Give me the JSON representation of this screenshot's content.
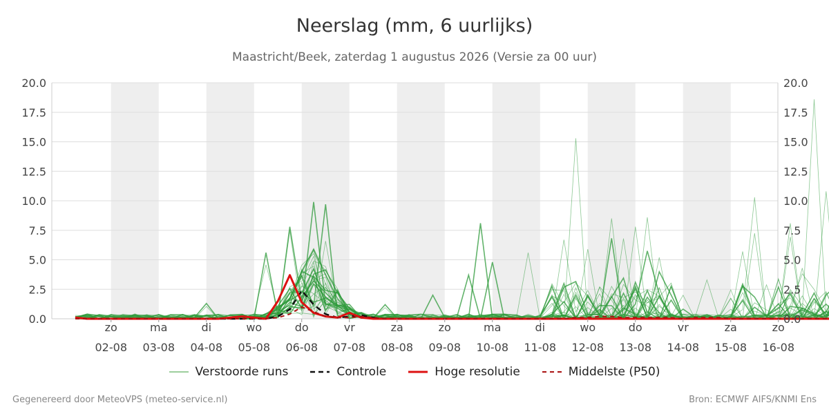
{
  "chart_data": {
    "type": "line",
    "title": "Neerslag (mm, 6 uurlijks)",
    "subtitle": "Maastricht/Beek, zaterdag  1 augustus 2026 (Versie za 00 uur)",
    "ylim": [
      0,
      20
    ],
    "y_ticks": [
      "0.0",
      "2.5",
      "5.0",
      "7.5",
      "10.0",
      "12.5",
      "15.0",
      "17.5",
      "20.0"
    ],
    "x_ticks": [
      {
        "day": "zo",
        "date": "02-08"
      },
      {
        "day": "ma",
        "date": "03-08"
      },
      {
        "day": "di",
        "date": "04-08"
      },
      {
        "day": "wo",
        "date": "05-08"
      },
      {
        "day": "do",
        "date": "06-08"
      },
      {
        "day": "vr",
        "date": "07-08"
      },
      {
        "day": "za",
        "date": "08-08"
      },
      {
        "day": "zo",
        "date": "09-08"
      },
      {
        "day": "ma",
        "date": "10-08"
      },
      {
        "day": "di",
        "date": "11-08"
      },
      {
        "day": "wo",
        "date": "12-08"
      },
      {
        "day": "do",
        "date": "13-08"
      },
      {
        "day": "vr",
        "date": "14-08"
      },
      {
        "day": "za",
        "date": "15-08"
      },
      {
        "day": "zo",
        "date": "16-08"
      }
    ],
    "grid": true,
    "legend_position": "bottom",
    "series": [
      {
        "name": "Verstoorde runs",
        "color": "#3a9c3a",
        "style": "thin",
        "values": []
      },
      {
        "name": "Controle",
        "color": "#111111",
        "style": "dashed",
        "values": [
          0.1,
          0,
          0,
          0,
          0,
          0,
          0,
          0,
          0,
          0,
          0,
          0,
          0,
          0,
          0,
          0,
          0,
          0.2,
          0.8,
          2.4,
          1.2,
          0.4,
          0.1,
          0.2,
          0.3,
          0.1,
          0,
          0,
          0,
          0,
          0,
          0,
          0,
          0,
          0,
          0,
          0,
          0,
          0,
          0,
          0,
          0,
          0,
          0,
          0,
          0,
          0,
          0,
          0,
          0,
          0,
          0,
          0,
          0,
          0,
          0,
          0,
          0,
          0,
          0,
          0,
          0,
          0,
          0,
          0,
          0,
          0,
          0,
          0,
          0,
          0,
          0,
          0,
          0,
          0,
          0,
          0,
          0,
          0,
          0,
          0,
          0,
          0,
          0,
          0,
          0,
          0,
          0.1,
          0.5,
          1.2,
          0.7,
          0.2,
          0.1,
          0.3,
          2.7,
          3.0,
          1.3,
          0.5,
          0.1,
          0.2,
          0.1,
          0,
          0,
          0,
          0,
          0,
          0
        ]
      },
      {
        "name": "Hoge resolutie",
        "color": "#dd1111",
        "style": "thick",
        "values": [
          0.1,
          0,
          0,
          0,
          0,
          0,
          0,
          0,
          0,
          0,
          0,
          0,
          0,
          0.1,
          0.2,
          0.1,
          0,
          1.5,
          3.7,
          1.4,
          0.5,
          0.2,
          0.1,
          0.5,
          0.1,
          0,
          0,
          0,
          0,
          0,
          0,
          0,
          0,
          0,
          0,
          0,
          0,
          0,
          0,
          0,
          0,
          0,
          0,
          0,
          0,
          0,
          0,
          0,
          0,
          0,
          0,
          0,
          0,
          0,
          0,
          0,
          0,
          0,
          0,
          0,
          0,
          0,
          0,
          0,
          0,
          0,
          0,
          0,
          0,
          0,
          0,
          0,
          0,
          0,
          0,
          0,
          0,
          0,
          0,
          0,
          0,
          0,
          0,
          0,
          0,
          0,
          0,
          0,
          0,
          0,
          0,
          0,
          0,
          0,
          0,
          0,
          0,
          0,
          0,
          0,
          0,
          0,
          0,
          0,
          0,
          0,
          0,
          0,
          0
        ]
      },
      {
        "name": "Middelste (P50)",
        "color": "#aa1111",
        "style": "dashed-thin",
        "values": [
          0,
          0,
          0,
          0,
          0,
          0,
          0,
          0,
          0,
          0,
          0,
          0,
          0,
          0,
          0,
          0,
          0,
          0.1,
          0.4,
          1.0,
          0.6,
          0.2,
          0.1,
          0.1,
          0.2,
          0.1,
          0,
          0,
          0,
          0,
          0,
          0,
          0,
          0,
          0,
          0,
          0,
          0,
          0,
          0,
          0,
          0,
          0.1,
          0.1,
          0.2,
          0.2,
          0.1,
          0.1,
          0.1,
          0.1,
          0.1,
          0,
          0.1,
          0.1,
          0.1,
          0,
          0,
          0,
          0,
          0,
          0,
          0,
          0,
          0,
          0,
          0,
          0,
          0,
          0,
          0,
          0,
          0,
          0,
          0.1,
          0.1,
          0.2,
          0.2,
          0.1,
          0.1,
          0.1,
          0.2,
          0.2,
          0.1,
          0.1,
          0.1,
          0.1,
          0.2,
          0.2,
          0.1,
          0.1,
          0.1,
          0.2,
          0.2,
          0.1,
          0.1,
          0.1,
          0.1,
          0.1,
          0.1,
          0.1,
          0,
          0
        ]
      }
    ],
    "ensemble_peaks": [
      {
        "x": 10.6,
        "y": 1.3
      },
      {
        "x": 16.3,
        "y": 5.6
      },
      {
        "x": 18.3,
        "y": 7.8
      },
      {
        "x": 20.3,
        "y": 9.9
      },
      {
        "x": 21.3,
        "y": 9.7
      },
      {
        "x": 25.6,
        "y": 1.2
      },
      {
        "x": 30.3,
        "y": 2.0
      },
      {
        "x": 33.3,
        "y": 3.7
      },
      {
        "x": 34.3,
        "y": 8.1
      },
      {
        "x": 35.3,
        "y": 4.8
      },
      {
        "x": 38.3,
        "y": 5.6
      },
      {
        "x": 41.3,
        "y": 6.7
      },
      {
        "x": 42.3,
        "y": 15.3
      },
      {
        "x": 43.3,
        "y": 5.9
      },
      {
        "x": 45.3,
        "y": 8.5
      },
      {
        "x": 46.3,
        "y": 6.8
      },
      {
        "x": 47.3,
        "y": 7.8
      },
      {
        "x": 48.3,
        "y": 8.6
      },
      {
        "x": 49.3,
        "y": 5.2
      },
      {
        "x": 51.3,
        "y": 2.0
      },
      {
        "x": 53.3,
        "y": 3.3
      },
      {
        "x": 56.3,
        "y": 5.7
      },
      {
        "x": 57.3,
        "y": 10.3
      },
      {
        "x": 59.3,
        "y": 3.4
      },
      {
        "x": 60.3,
        "y": 8.1
      },
      {
        "x": 61.3,
        "y": 4.3
      },
      {
        "x": 62.3,
        "y": 18.6
      },
      {
        "x": 63.3,
        "y": 10.8
      },
      {
        "x": 64.3,
        "y": 4.1
      },
      {
        "x": 65.3,
        "y": 5.6
      },
      {
        "x": 66.3,
        "y": 5.1
      },
      {
        "x": 67.3,
        "y": 2.8
      },
      {
        "x": 68.3,
        "y": 2.0
      },
      {
        "x": 69.3,
        "y": 7.4
      },
      {
        "x": 70.3,
        "y": 2.3
      }
    ]
  },
  "legend": {
    "perturbed": "Verstoorde runs",
    "control": "Controle",
    "high_res": "Hoge resolutie",
    "median": "Middelste (P50)"
  },
  "footer": {
    "left": "Gegenereerd door MeteoVPS (meteo-service.nl)",
    "right": "Bron: ECMWF AIFS/KNMI Ens"
  }
}
